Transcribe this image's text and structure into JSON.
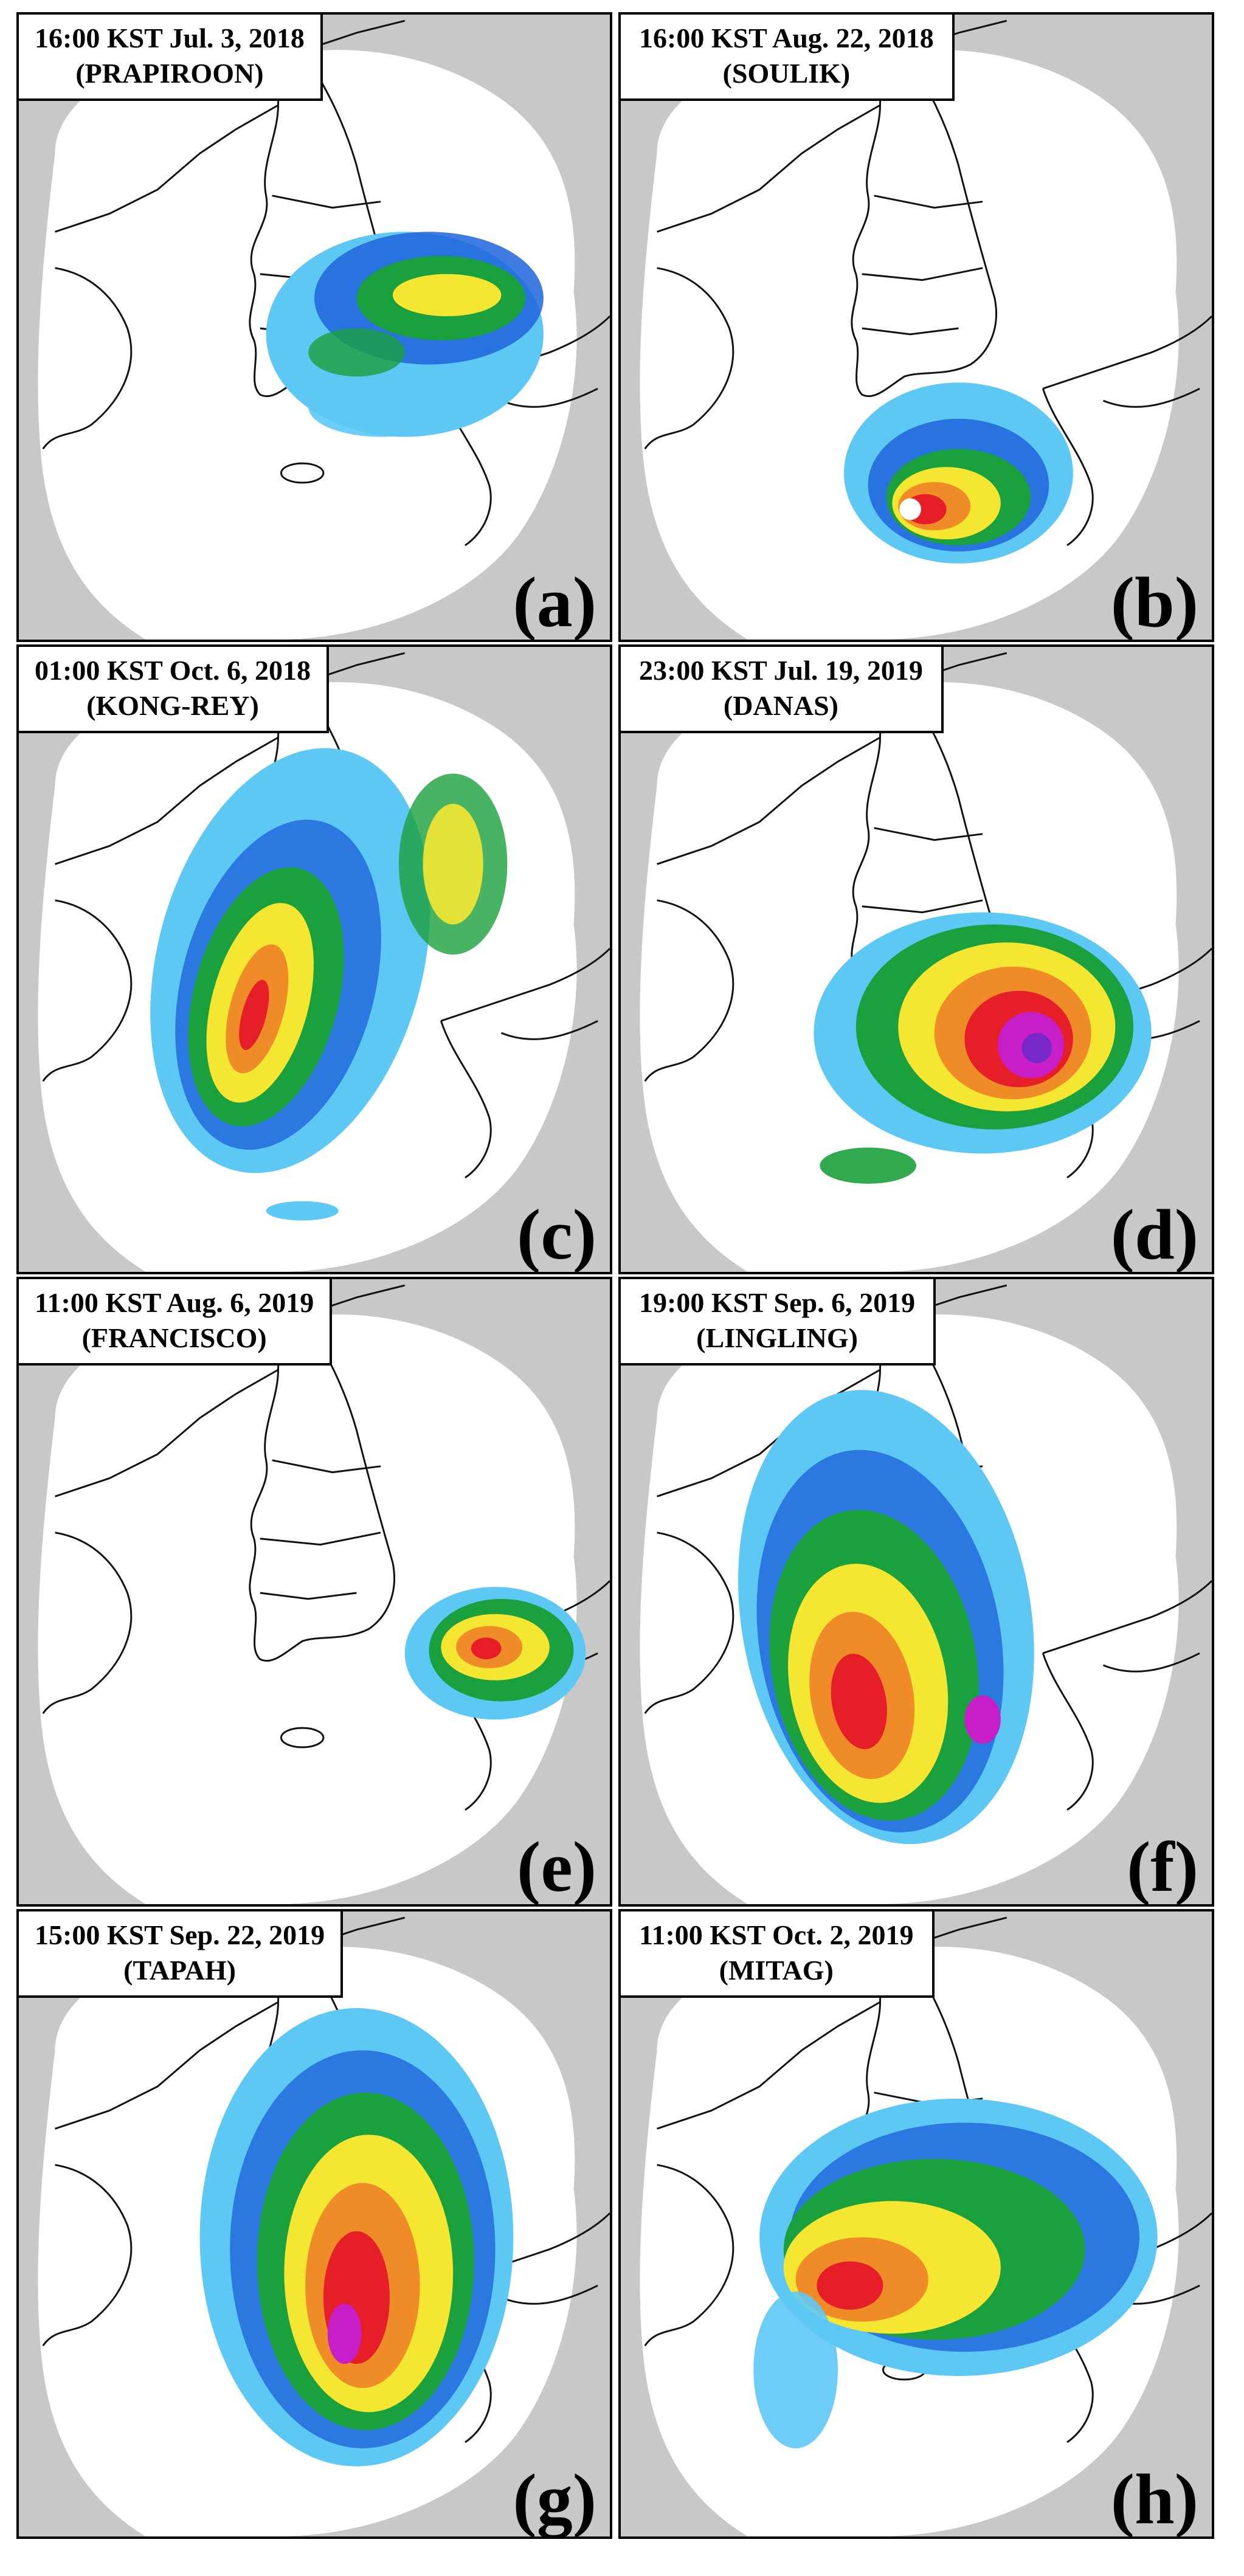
{
  "panels": [
    {
      "time": "16:00 KST Jul. 3, 2018",
      "storm": "(PRAPIROON)",
      "letter": "(a)"
    },
    {
      "time": "16:00 KST Aug. 22, 2018",
      "storm": "(SOULIK)",
      "letter": "(b)"
    },
    {
      "time": "01:00 KST Oct. 6, 2018",
      "storm": "(KONG-REY)",
      "letter": "(c)"
    },
    {
      "time": "23:00 KST Jul. 19, 2019",
      "storm": "(DANAS)",
      "letter": "(d)"
    },
    {
      "time": "11:00 KST Aug. 6, 2019",
      "storm": "(FRANCISCO)",
      "letter": "(e)"
    },
    {
      "time": "19:00 KST Sep. 6, 2019",
      "storm": "(LINGLING)",
      "letter": "(f)"
    },
    {
      "time": "15:00 KST Sep. 22, 2019",
      "storm": "(TAPAH)",
      "letter": "(g)"
    },
    {
      "time": "11:00 KST Oct. 2, 2019",
      "storm": "(MITAG)",
      "letter": "(h)"
    }
  ],
  "colors": {
    "radar_out_of_range": "#c8c8c8",
    "radar_coverage": "#ffffff",
    "coastline": "#111111",
    "echo_light_blue": "#5ec8f5",
    "echo_blue": "#1e64dc",
    "echo_green": "#1aa03c",
    "echo_yellow": "#f5e632",
    "echo_orange": "#f08c28",
    "echo_red": "#e61e28",
    "echo_magenta": "#c81ec8",
    "echo_purple": "#7828c8"
  }
}
